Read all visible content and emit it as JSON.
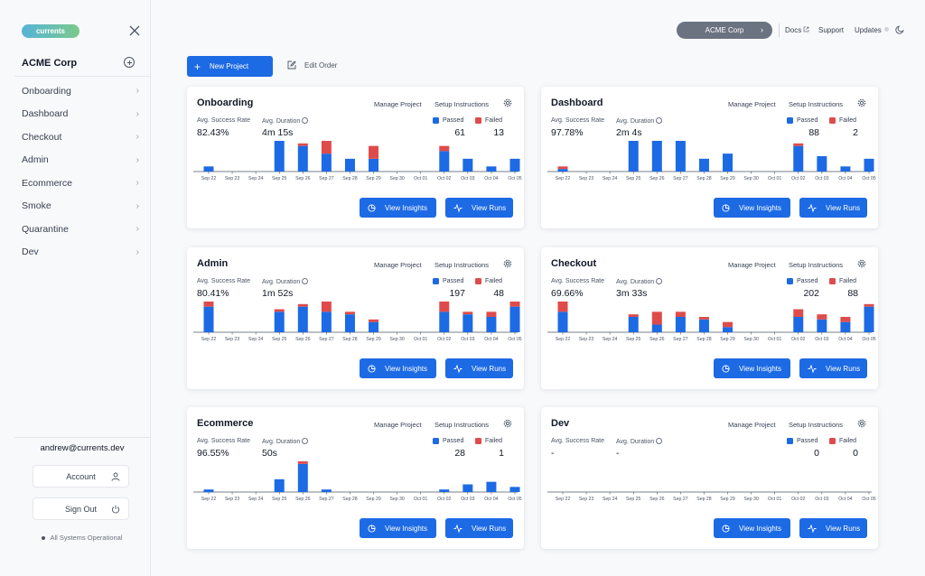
{
  "sidebar": {
    "logo": "currents",
    "org_name": "ACME Corp",
    "items": [
      {
        "label": "Onboarding"
      },
      {
        "label": "Dashboard"
      },
      {
        "label": "Checkout"
      },
      {
        "label": "Admin"
      },
      {
        "label": "Ecommerce"
      },
      {
        "label": "Smoke"
      },
      {
        "label": "Quarantine"
      },
      {
        "label": "Dev"
      }
    ],
    "user_email": "andrew@currents.dev",
    "account_label": "Account",
    "signout_label": "Sign Out",
    "status_text": "All Systems Operational"
  },
  "topbar": {
    "org_pill": "ACME Corp",
    "docs": "Docs",
    "support": "Support",
    "updates": "Updates"
  },
  "actions": {
    "new_project": "New Project",
    "edit_order": "Edit Order"
  },
  "card_labels": {
    "manage": "Manage Project",
    "setup": "Setup Instructions",
    "success_rate": "Avg. Success Rate",
    "duration": "Avg. Duration",
    "passed": "Passed",
    "failed": "Failed",
    "view_insights": "View Insights",
    "view_runs": "View Runs"
  },
  "colors": {
    "passed": "#1d6ae5",
    "failed": "#df4b4b",
    "accent": "#1d6ae5"
  },
  "chart_data": [
    {
      "type": "bar",
      "title": "Onboarding",
      "categories": [
        "Sep 22",
        "Sep 23",
        "Sep 24",
        "Sep 25",
        "Sep 26",
        "Sep 27",
        "Sep 28",
        "Sep 29",
        "Sep 30",
        "Oct 01",
        "Oct 02",
        "Oct 03",
        "Oct 04",
        "Oct 05"
      ],
      "series": [
        {
          "name": "Passed",
          "values": [
            2,
            0,
            0,
            12,
            10,
            7,
            5,
            5,
            0,
            0,
            8,
            5,
            2,
            5
          ]
        },
        {
          "name": "Failed",
          "values": [
            0,
            0,
            0,
            0,
            1,
            5,
            0,
            5,
            0,
            0,
            2,
            0,
            0,
            0
          ]
        }
      ],
      "ylim": [
        0,
        12
      ]
    },
    {
      "type": "bar",
      "title": "Dashboard",
      "categories": [
        "Sep 22",
        "Sep 23",
        "Sep 24",
        "Sep 25",
        "Sep 26",
        "Sep 27",
        "Sep 28",
        "Sep 29",
        "Sep 30",
        "Oct 01",
        "Oct 02",
        "Oct 03",
        "Oct 04",
        "Oct 05"
      ],
      "series": [
        {
          "name": "Passed",
          "values": [
            1,
            0,
            0,
            12,
            12,
            12,
            5,
            7,
            0,
            0,
            10,
            6,
            2,
            5
          ]
        },
        {
          "name": "Failed",
          "values": [
            1,
            0,
            0,
            0,
            0,
            0,
            0,
            0,
            0,
            0,
            1,
            0,
            0,
            0
          ]
        }
      ],
      "ylim": [
        0,
        12
      ]
    },
    {
      "type": "bar",
      "title": "Admin",
      "categories": [
        "Sep 22",
        "Sep 23",
        "Sep 24",
        "Sep 25",
        "Sep 26",
        "Sep 27",
        "Sep 28",
        "Sep 29",
        "Sep 30",
        "Oct 01",
        "Oct 02",
        "Oct 03",
        "Oct 04",
        "Oct 05"
      ],
      "series": [
        {
          "name": "Passed",
          "values": [
            10,
            0,
            0,
            8,
            10,
            8,
            7,
            4,
            0,
            0,
            8,
            7,
            6,
            10
          ]
        },
        {
          "name": "Failed",
          "values": [
            2,
            0,
            0,
            1,
            1,
            4,
            1,
            1,
            0,
            0,
            4,
            1,
            2,
            2
          ]
        }
      ],
      "ylim": [
        0,
        12
      ]
    },
    {
      "type": "bar",
      "title": "Checkout",
      "categories": [
        "Sep 22",
        "Sep 23",
        "Sep 24",
        "Sep 25",
        "Sep 26",
        "Sep 27",
        "Sep 28",
        "Sep 29",
        "Sep 30",
        "Oct 01",
        "Oct 02",
        "Oct 03",
        "Oct 04",
        "Oct 05"
      ],
      "series": [
        {
          "name": "Passed",
          "values": [
            8,
            0,
            0,
            6,
            3,
            6,
            5,
            2,
            0,
            0,
            6,
            5,
            4,
            10
          ]
        },
        {
          "name": "Failed",
          "values": [
            4,
            0,
            0,
            1,
            5,
            2,
            1,
            2,
            0,
            0,
            3,
            2,
            2,
            1
          ]
        }
      ],
      "ylim": [
        0,
        12
      ]
    },
    {
      "type": "bar",
      "title": "Ecommerce",
      "categories": [
        "Sep 22",
        "Sep 23",
        "Sep 24",
        "Sep 25",
        "Sep 26",
        "Sep 27",
        "Sep 28",
        "Sep 29",
        "Sep 30",
        "Oct 01",
        "Oct 02",
        "Oct 03",
        "Oct 04",
        "Oct 05"
      ],
      "series": [
        {
          "name": "Passed",
          "values": [
            1,
            0,
            0,
            5,
            11,
            1,
            0,
            0,
            0,
            0,
            1,
            3,
            4,
            2
          ]
        },
        {
          "name": "Failed",
          "values": [
            0,
            0,
            0,
            0,
            1,
            0,
            0,
            0,
            0,
            0,
            0,
            0,
            0,
            0
          ]
        }
      ],
      "ylim": [
        0,
        12
      ]
    },
    {
      "type": "bar",
      "title": "Dev",
      "categories": [
        "Sep 22",
        "Sep 23",
        "Sep 24",
        "Sep 25",
        "Sep 26",
        "Sep 27",
        "Sep 28",
        "Sep 29",
        "Sep 30",
        "Oct 01",
        "Oct 02",
        "Oct 03",
        "Oct 04",
        "Oct 05"
      ],
      "series": [
        {
          "name": "Passed",
          "values": [
            0,
            0,
            0,
            0,
            0,
            0,
            0,
            0,
            0,
            0,
            0,
            0,
            0,
            0
          ]
        },
        {
          "name": "Failed",
          "values": [
            0,
            0,
            0,
            0,
            0,
            0,
            0,
            0,
            0,
            0,
            0,
            0,
            0,
            0
          ]
        }
      ],
      "ylim": [
        0,
        12
      ]
    }
  ],
  "projects": [
    {
      "name": "Onboarding",
      "success_rate": "82.43%",
      "duration": "4m 15s",
      "passed": "61",
      "failed": "13"
    },
    {
      "name": "Dashboard",
      "success_rate": "97.78%",
      "duration": "2m 4s",
      "passed": "88",
      "failed": "2"
    },
    {
      "name": "Admin",
      "success_rate": "80.41%",
      "duration": "1m 52s",
      "passed": "197",
      "failed": "48"
    },
    {
      "name": "Checkout",
      "success_rate": "69.66%",
      "duration": "3m 33s",
      "passed": "202",
      "failed": "88"
    },
    {
      "name": "Ecommerce",
      "success_rate": "96.55%",
      "duration": "50s",
      "passed": "28",
      "failed": "1"
    },
    {
      "name": "Dev",
      "success_rate": "-",
      "duration": "-",
      "passed": "0",
      "failed": "0"
    }
  ]
}
